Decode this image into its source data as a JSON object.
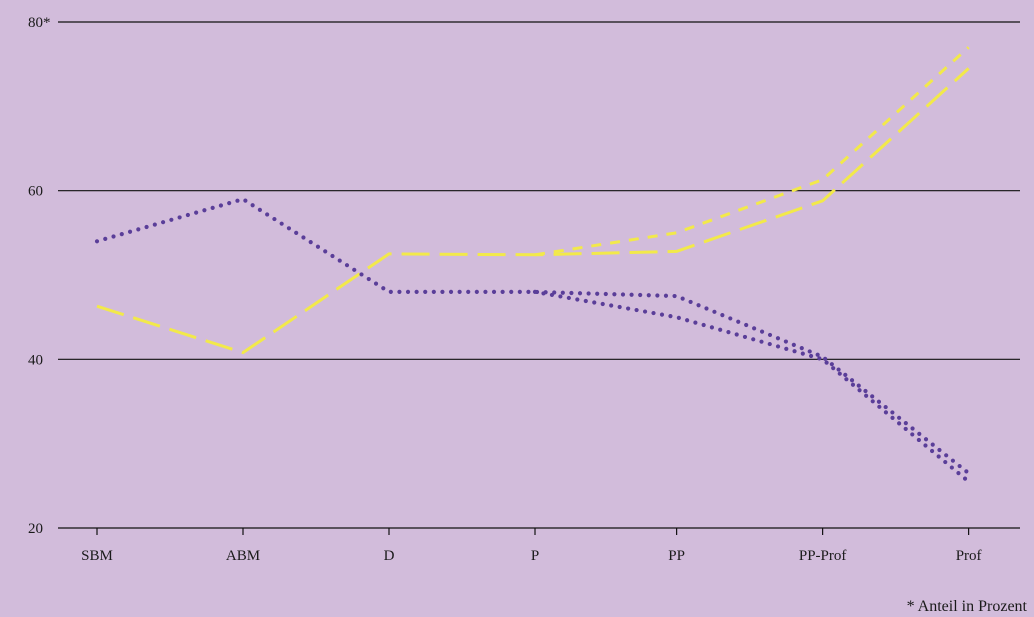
{
  "chart_data": {
    "type": "line",
    "categories": [
      "SBM",
      "ABM",
      "D",
      "P",
      "PP",
      "PP-Prof",
      "Prof"
    ],
    "x_positions": [
      0,
      1,
      2,
      3,
      3.97,
      4.97,
      5.97
    ],
    "ylim": [
      20,
      80
    ],
    "y_ticks": [
      {
        "value": 20,
        "label": "20"
      },
      {
        "value": 40,
        "label": "40"
      },
      {
        "value": 60,
        "label": "60"
      },
      {
        "value": 80,
        "label": "80*"
      }
    ],
    "grid": true,
    "series": [
      {
        "color": "#f2e94a",
        "style": "long-dash",
        "values": [
          46.3,
          40.8,
          52.5,
          52.4,
          52.8,
          58.8,
          74.5
        ]
      },
      {
        "color": "#f2e94a",
        "style": "short-dash",
        "values": [
          null,
          null,
          null,
          52.4,
          55.0,
          61.3,
          77.0
        ]
      },
      {
        "color": "#5a3e99",
        "style": "dots",
        "values": [
          54.0,
          59.0,
          48.0,
          48.0,
          47.5,
          40.3,
          26.5
        ]
      },
      {
        "color": "#5a3e99",
        "style": "dots",
        "values": [
          null,
          null,
          null,
          48.0,
          45.0,
          40.0,
          25.5
        ]
      }
    ],
    "footnote": "* Anteil in Prozent"
  }
}
